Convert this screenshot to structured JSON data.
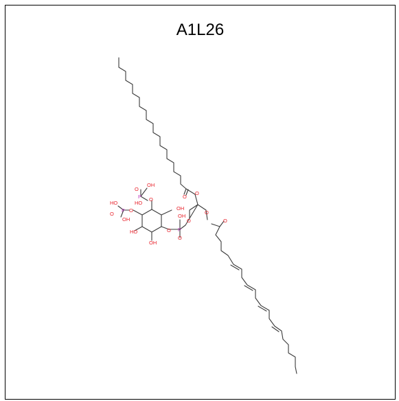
{
  "title": "A1L26",
  "atoms": {
    "oxygen": "O",
    "phosphorus": "P",
    "hydroxyl": "OH",
    "hydroxyl_left": "HO"
  },
  "colors": {
    "bond": "#3a3a3a",
    "oxygen": "#e8202a",
    "phosphorus": "#c040c0",
    "frame": "#000000"
  }
}
